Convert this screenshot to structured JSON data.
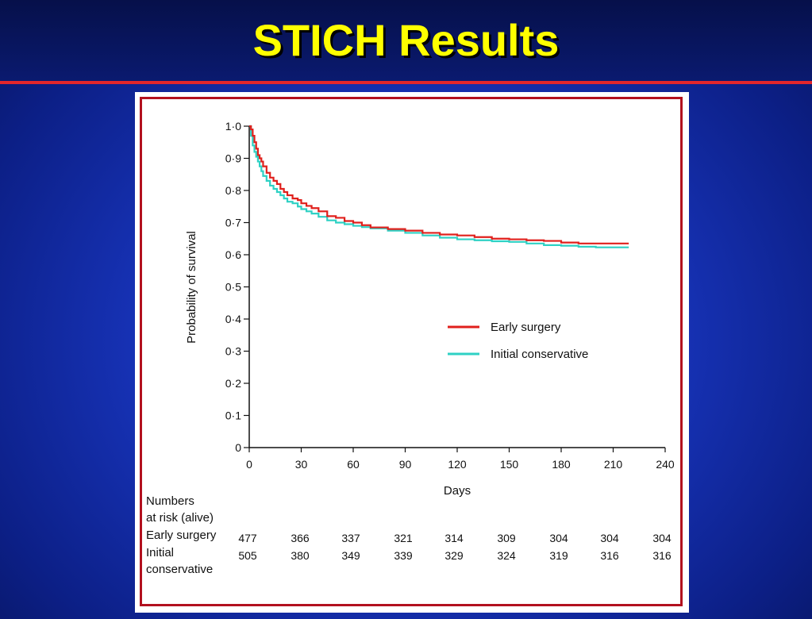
{
  "slide": {
    "title": "STICH Results"
  },
  "chart_data": {
    "type": "line",
    "xlabel": "Days",
    "ylabel": "Probability of survival",
    "xlim": [
      0,
      240
    ],
    "ylim": [
      0,
      1.0
    ],
    "x_ticks": [
      "0",
      "30",
      "60",
      "90",
      "120",
      "150",
      "180",
      "210",
      "240"
    ],
    "y_ticks": [
      "0",
      "0·1",
      "0·2",
      "0·3",
      "0·4",
      "0·5",
      "0·6",
      "0·7",
      "0·8",
      "0·9",
      "1·0"
    ],
    "grid": false,
    "legend_placement": "center-right",
    "series": [
      {
        "name": "Early surgery",
        "color": "#e0201c",
        "x": [
          0,
          1,
          2,
          3,
          4,
          5,
          6,
          7,
          8,
          10,
          12,
          14,
          16,
          18,
          20,
          22,
          25,
          28,
          30,
          33,
          36,
          40,
          45,
          50,
          55,
          60,
          65,
          70,
          80,
          90,
          100,
          110,
          120,
          130,
          140,
          150,
          160,
          170,
          180,
          190,
          200,
          210,
          219
        ],
        "y": [
          1.0,
          0.99,
          0.97,
          0.95,
          0.93,
          0.91,
          0.9,
          0.89,
          0.875,
          0.855,
          0.84,
          0.83,
          0.82,
          0.805,
          0.795,
          0.785,
          0.775,
          0.77,
          0.76,
          0.752,
          0.745,
          0.735,
          0.72,
          0.715,
          0.705,
          0.7,
          0.692,
          0.685,
          0.68,
          0.675,
          0.668,
          0.663,
          0.66,
          0.655,
          0.65,
          0.648,
          0.645,
          0.643,
          0.638,
          0.635,
          0.635,
          0.635,
          0.635
        ]
      },
      {
        "name": "Initial conservative",
        "color": "#2ed1c4",
        "x": [
          0,
          1,
          2,
          3,
          4,
          5,
          6,
          7,
          8,
          10,
          12,
          14,
          16,
          18,
          20,
          22,
          25,
          28,
          30,
          33,
          36,
          40,
          45,
          50,
          55,
          60,
          65,
          70,
          80,
          90,
          100,
          110,
          120,
          130,
          140,
          150,
          160,
          170,
          180,
          190,
          200,
          210,
          219
        ],
        "y": [
          1.0,
          0.97,
          0.94,
          0.92,
          0.905,
          0.89,
          0.875,
          0.86,
          0.845,
          0.83,
          0.815,
          0.805,
          0.795,
          0.785,
          0.775,
          0.765,
          0.76,
          0.75,
          0.742,
          0.735,
          0.728,
          0.718,
          0.707,
          0.7,
          0.695,
          0.69,
          0.686,
          0.682,
          0.675,
          0.668,
          0.66,
          0.653,
          0.648,
          0.645,
          0.642,
          0.64,
          0.635,
          0.63,
          0.628,
          0.625,
          0.623,
          0.623,
          0.623
        ]
      }
    ],
    "at_risk": {
      "heading": [
        "Numbers",
        "at risk (alive)"
      ],
      "rows": [
        {
          "label": [
            "Early surgery"
          ],
          "values": [
            "477",
            "366",
            "337",
            "321",
            "314",
            "309",
            "304",
            "304",
            "304"
          ]
        },
        {
          "label": [
            "Initial",
            "conservative"
          ],
          "values": [
            "505",
            "380",
            "349",
            "339",
            "329",
            "324",
            "319",
            "316",
            "316"
          ]
        }
      ]
    }
  }
}
